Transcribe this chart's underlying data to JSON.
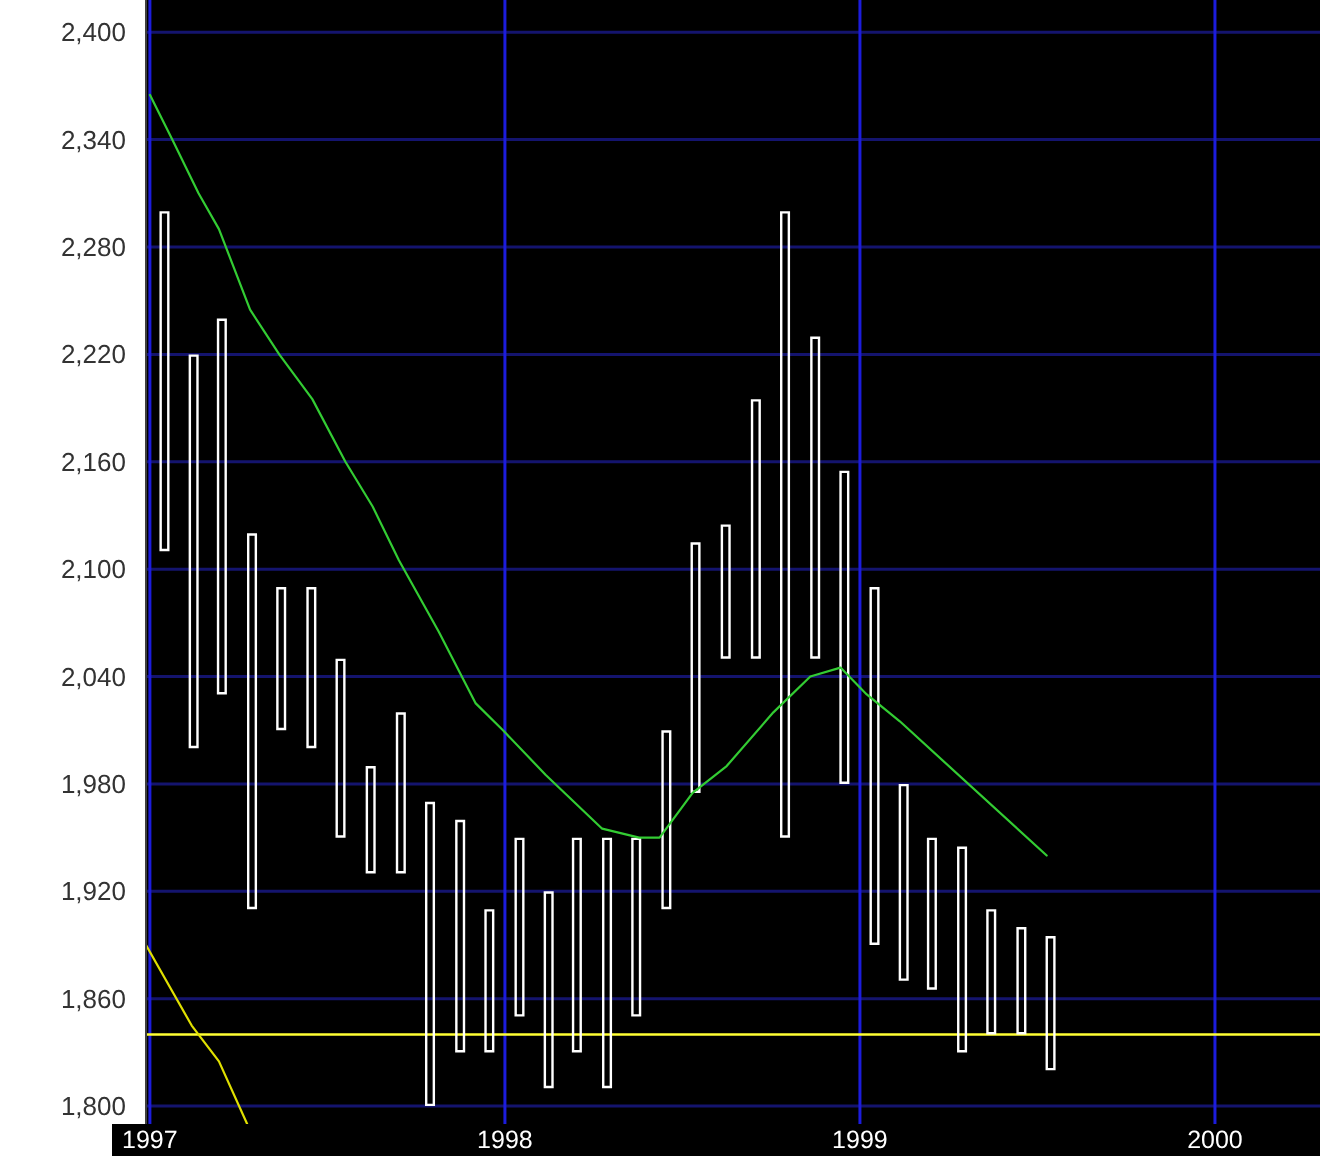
{
  "chart_data": {
    "type": "bar",
    "x": [
      "1997-01-16",
      "1997-02-15",
      "1997-03-16",
      "1997-04-16",
      "1997-05-16",
      "1997-06-16",
      "1997-07-16",
      "1997-08-16",
      "1997-09-16",
      "1997-10-16",
      "1997-11-16",
      "1997-12-16",
      "1998-01-16",
      "1998-02-15",
      "1998-03-16",
      "1998-04-16",
      "1998-05-16",
      "1998-06-16",
      "1998-07-16",
      "1998-08-16",
      "1998-09-16",
      "1998-10-16",
      "1998-11-16",
      "1998-12-16",
      "1999-01-16",
      "1999-02-15",
      "1999-03-16",
      "1999-04-16",
      "1999-05-16",
      "1999-06-16",
      "1999-07-16"
    ],
    "base": [
      2110,
      2000,
      2030,
      1910,
      2010,
      2000,
      1950,
      1930,
      1930,
      1800,
      1830,
      1830,
      1850,
      1810,
      1830,
      1810,
      1850,
      1910,
      1975,
      2050,
      2050,
      1950,
      2050,
      1980,
      1890,
      1870,
      1865,
      1830,
      1840,
      1840,
      1820
    ],
    "values": [
      190,
      220,
      210,
      210,
      80,
      90,
      100,
      60,
      90,
      170,
      130,
      80,
      100,
      110,
      120,
      140,
      100,
      100,
      140,
      75,
      145,
      350,
      180,
      175,
      200,
      110,
      85,
      115,
      70,
      60,
      75
    ],
    "color": "#ffffff",
    "series": [
      {
        "type": "line",
        "color": "#33cc33",
        "x": [
          "1997-01-01",
          "1997-01-24",
          "1997-02-20",
          "1997-03-13",
          "1997-04-14",
          "1997-05-14",
          "1997-06-17",
          "1997-07-21",
          "1997-08-18",
          "1997-09-14",
          "1997-10-25",
          "1997-12-02",
          "1997-12-30",
          "1998-02-12",
          "1998-04-11",
          "1998-05-19",
          "1998-06-09",
          "1998-07-13",
          "1998-08-17",
          "1998-10-04",
          "1998-11-11",
          "1998-12-12",
          "1999-01-08",
          "1999-02-11",
          "1999-07-12"
        ],
        "values": [
          2365,
          2340,
          2310,
          2290,
          2245,
          2220,
          2195,
          2160,
          2135,
          2105,
          2065,
          2025,
          2010,
          1985,
          1955,
          1950,
          1950,
          1975,
          1990,
          2020,
          2040,
          2045,
          2030,
          2015,
          1940
        ]
      },
      {
        "type": "line",
        "color": "#e0e000",
        "x": [
          "1996-12-28",
          "1997-02-13",
          "1997-03-13",
          "1997-04-11"
        ],
        "values": [
          1890,
          1845,
          1825,
          1790
        ]
      }
    ],
    "xlim": [
      "1996-12-28",
      "2000-04-18"
    ],
    "xticks": [
      {
        "value": "1997",
        "label": "1997"
      },
      {
        "value": "1998",
        "label": "1998"
      },
      {
        "value": "1999",
        "label": "1999"
      },
      {
        "value": "2000",
        "label": "2000"
      }
    ],
    "ylim": [
      1790,
      2418
    ],
    "yticks": [
      {
        "value": 1800,
        "label": "1,800"
      },
      {
        "value": 1860,
        "label": "1,860"
      },
      {
        "value": 1920,
        "label": "1,920"
      },
      {
        "value": 1980,
        "label": "1,980"
      },
      {
        "value": 2040,
        "label": "2,040"
      },
      {
        "value": 2100,
        "label": "2,100"
      },
      {
        "value": 2160,
        "label": "2,160"
      },
      {
        "value": 2220,
        "label": "2,220"
      },
      {
        "value": 2280,
        "label": "2,280"
      },
      {
        "value": 2340,
        "label": "2,340"
      },
      {
        "value": 2400,
        "label": "2,400"
      }
    ],
    "grid": true,
    "ref_lines": [
      {
        "axis": "y",
        "value": 1840,
        "color": "#ffff33"
      }
    ]
  }
}
